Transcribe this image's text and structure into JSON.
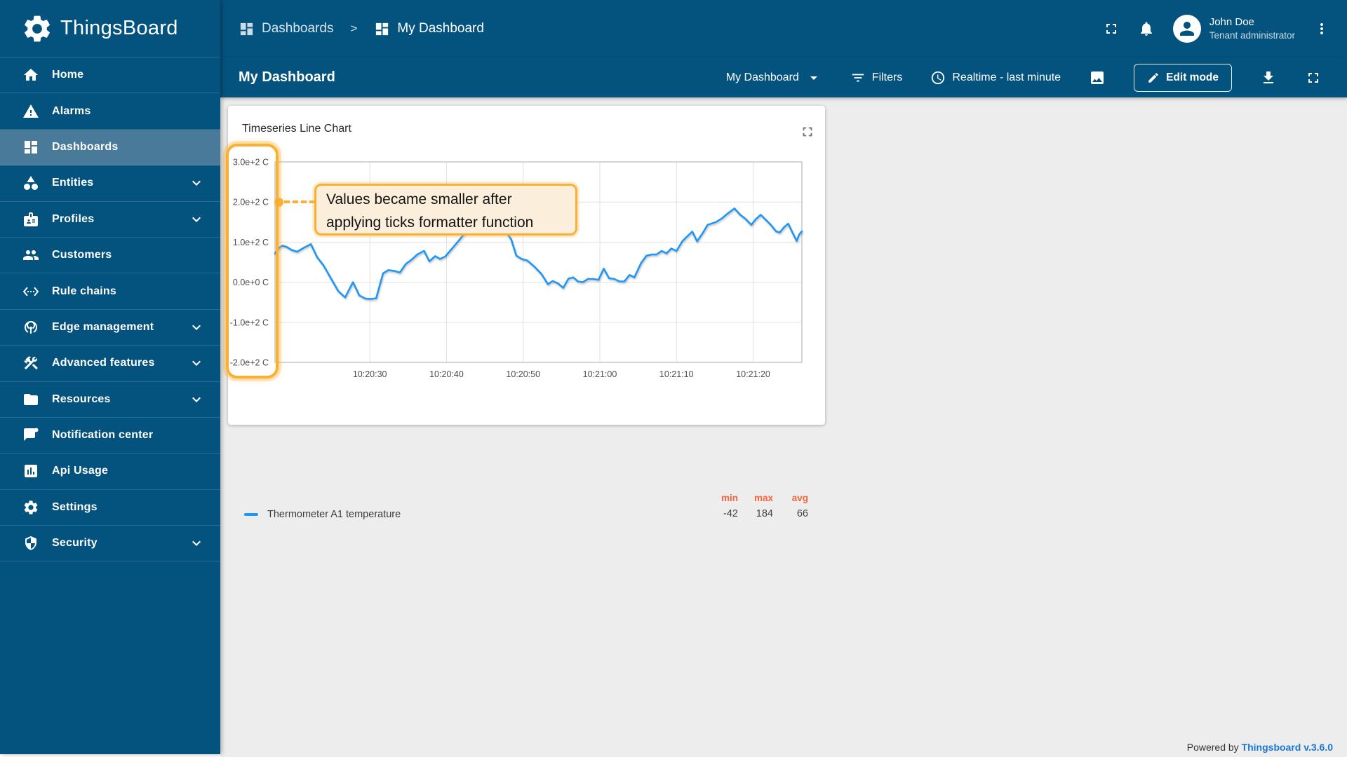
{
  "brand": {
    "name": "ThingsBoard"
  },
  "sidebar": {
    "items": [
      {
        "label": "Home",
        "icon": "home-icon",
        "expandable": false,
        "active": false
      },
      {
        "label": "Alarms",
        "icon": "alarms-icon",
        "expandable": false,
        "active": false
      },
      {
        "label": "Dashboards",
        "icon": "dashboards-icon",
        "expandable": false,
        "active": true
      },
      {
        "label": "Entities",
        "icon": "entities-icon",
        "expandable": true,
        "active": false
      },
      {
        "label": "Profiles",
        "icon": "profiles-icon",
        "expandable": true,
        "active": false
      },
      {
        "label": "Customers",
        "icon": "customers-icon",
        "expandable": false,
        "active": false
      },
      {
        "label": "Rule chains",
        "icon": "rule-chains-icon",
        "expandable": false,
        "active": false
      },
      {
        "label": "Edge management",
        "icon": "edge-icon",
        "expandable": true,
        "active": false
      },
      {
        "label": "Advanced features",
        "icon": "advanced-icon",
        "expandable": true,
        "active": false
      },
      {
        "label": "Resources",
        "icon": "resources-icon",
        "expandable": true,
        "active": false
      },
      {
        "label": "Notification center",
        "icon": "notification-icon",
        "expandable": false,
        "active": false
      },
      {
        "label": "Api Usage",
        "icon": "api-usage-icon",
        "expandable": false,
        "active": false
      },
      {
        "label": "Settings",
        "icon": "settings-icon",
        "expandable": false,
        "active": false
      },
      {
        "label": "Security",
        "icon": "security-icon",
        "expandable": true,
        "active": false
      }
    ]
  },
  "topbar": {
    "breadcrumb": [
      {
        "label": "Dashboards"
      },
      {
        "label": "My Dashboard"
      }
    ],
    "separator": ">",
    "user": {
      "name": "John Doe",
      "role": "Tenant administrator"
    }
  },
  "toolbar": {
    "title": "My Dashboard",
    "dashboard_select": "My Dashboard",
    "filters_label": "Filters",
    "timewindow_label": "Realtime - last minute",
    "edit_mode_label": "Edit mode"
  },
  "widget": {
    "title": "Timeseries Line Chart",
    "annotation": {
      "lines": [
        "Values became smaller after",
        "applying ticks formatter function"
      ]
    }
  },
  "chart_data": {
    "type": "line",
    "title": "Timeseries Line Chart",
    "ylim": [
      -200,
      300
    ],
    "unit": "C",
    "grid": true,
    "legend_position": "bottom",
    "y_ticks": [
      {
        "label": "3.0e+2 C",
        "value": 300
      },
      {
        "label": "2.0e+2 C",
        "value": 200
      },
      {
        "label": "1.0e+2 C",
        "value": 100
      },
      {
        "label": "0.0e+0 C",
        "value": 0
      },
      {
        "label": "-1.0e+2 C",
        "value": -100
      },
      {
        "label": "-2.0e+2 C",
        "value": -200
      }
    ],
    "x_ticks": [
      {
        "label": "10:20:30",
        "f": 0.18
      },
      {
        "label": "10:20:40",
        "f": 0.3255
      },
      {
        "label": "10:20:50",
        "f": 0.471
      },
      {
        "label": "10:21:00",
        "f": 0.6165
      },
      {
        "label": "10:21:10",
        "f": 0.762
      },
      {
        "label": "10:21:20",
        "f": 0.9075
      }
    ],
    "series": [
      {
        "name": "Thermometer A1 temperature",
        "color": "#2196F3",
        "points": [
          [
            0.0,
            72
          ],
          [
            0.008,
            86
          ],
          [
            0.014,
            91
          ],
          [
            0.022,
            88
          ],
          [
            0.032,
            80
          ],
          [
            0.042,
            76
          ],
          [
            0.055,
            86
          ],
          [
            0.068,
            95
          ],
          [
            0.08,
            62
          ],
          [
            0.092,
            42
          ],
          [
            0.105,
            12
          ],
          [
            0.12,
            -22
          ],
          [
            0.133,
            -38
          ],
          [
            0.148,
            0
          ],
          [
            0.16,
            -33
          ],
          [
            0.172,
            -41
          ],
          [
            0.182,
            -42
          ],
          [
            0.192,
            -40
          ],
          [
            0.205,
            22
          ],
          [
            0.215,
            30
          ],
          [
            0.227,
            28
          ],
          [
            0.237,
            24
          ],
          [
            0.248,
            45
          ],
          [
            0.259,
            56
          ],
          [
            0.271,
            70
          ],
          [
            0.283,
            78
          ],
          [
            0.293,
            52
          ],
          [
            0.304,
            65
          ],
          [
            0.313,
            58
          ],
          [
            0.323,
            64
          ],
          [
            0.336,
            84
          ],
          [
            0.349,
            104
          ],
          [
            0.361,
            124
          ],
          [
            0.374,
            144
          ],
          [
            0.386,
            160
          ],
          [
            0.398,
            172
          ],
          [
            0.408,
            178
          ],
          [
            0.419,
            170
          ],
          [
            0.429,
            148
          ],
          [
            0.439,
            124
          ],
          [
            0.448,
            108
          ],
          [
            0.458,
            66
          ],
          [
            0.468,
            58
          ],
          [
            0.479,
            54
          ],
          [
            0.493,
            38
          ],
          [
            0.506,
            20
          ],
          [
            0.518,
            -5
          ],
          [
            0.527,
            3
          ],
          [
            0.537,
            -3
          ],
          [
            0.547,
            -14
          ],
          [
            0.557,
            9
          ],
          [
            0.566,
            12
          ],
          [
            0.575,
            2
          ],
          [
            0.584,
            0
          ],
          [
            0.594,
            8
          ],
          [
            0.604,
            8
          ],
          [
            0.614,
            6
          ],
          [
            0.624,
            34
          ],
          [
            0.634,
            10
          ],
          [
            0.644,
            8
          ],
          [
            0.654,
            2
          ],
          [
            0.663,
            2
          ],
          [
            0.673,
            18
          ],
          [
            0.682,
            12
          ],
          [
            0.695,
            48
          ],
          [
            0.705,
            66
          ],
          [
            0.715,
            69
          ],
          [
            0.724,
            69
          ],
          [
            0.734,
            78
          ],
          [
            0.743,
            72
          ],
          [
            0.752,
            84
          ],
          [
            0.762,
            78
          ],
          [
            0.773,
            102
          ],
          [
            0.782,
            114
          ],
          [
            0.792,
            126
          ],
          [
            0.801,
            102
          ],
          [
            0.811,
            121
          ],
          [
            0.821,
            143
          ],
          [
            0.837,
            150
          ],
          [
            0.848,
            159
          ],
          [
            0.859,
            171
          ],
          [
            0.872,
            184
          ],
          [
            0.883,
            168
          ],
          [
            0.893,
            158
          ],
          [
            0.904,
            143
          ],
          [
            0.913,
            158
          ],
          [
            0.922,
            168
          ],
          [
            0.932,
            155
          ],
          [
            0.941,
            143
          ],
          [
            0.951,
            127
          ],
          [
            0.958,
            124
          ],
          [
            0.966,
            137
          ],
          [
            0.974,
            146
          ],
          [
            0.982,
            124
          ],
          [
            0.99,
            103
          ],
          [
            0.995,
            119
          ],
          [
            1.0,
            127
          ]
        ]
      }
    ],
    "stats": {
      "headers": [
        "min",
        "max",
        "avg"
      ],
      "values": [
        "-42",
        "184",
        "66"
      ]
    }
  },
  "footer": {
    "powered_by": "Powered by",
    "link": "Thingsboard v.3.6.0"
  },
  "colors": {
    "primary": "#04537E",
    "active_item": "#4A7A9A",
    "content_bg": "#EDEDED",
    "series_blue": "#2196F3",
    "annotation_orange": "#FBB034",
    "annotation_fill": "#FBEEDB",
    "stats_orange": "#F4643C",
    "link_blue": "#1976D2"
  }
}
